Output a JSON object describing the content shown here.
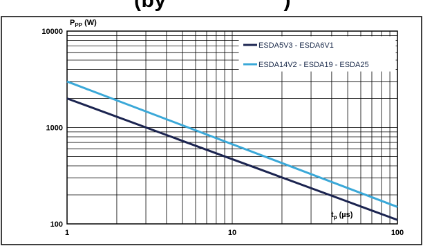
{
  "title_fragment": "(by ",
  "title_fragment_end": ")",
  "chart_data": {
    "type": "line",
    "x_scale": "log",
    "y_scale": "log",
    "xlim": [
      1,
      100
    ],
    "ylim": [
      100,
      10000
    ],
    "x_ticks": [
      "1",
      "10",
      "100"
    ],
    "y_ticks": [
      "100",
      "1000",
      "10000"
    ],
    "ylabel_main": "P",
    "ylabel_sub": "PP",
    "ylabel_unit": " (W)",
    "xlabel_main": "t",
    "xlabel_sub": "p",
    "xlabel_unit": " (µs)",
    "grid": true,
    "legend_position": "top-right",
    "series": [
      {
        "name": "ESDA5V3 - ESDA6V1",
        "color": "#1b2450",
        "x": [
          1,
          100
        ],
        "y": [
          2000,
          110
        ]
      },
      {
        "name": "ESDA14V2 - ESDA19 - ESDA25",
        "color": "#3aa8d8",
        "x": [
          1,
          100
        ],
        "y": [
          3000,
          150
        ]
      }
    ]
  }
}
